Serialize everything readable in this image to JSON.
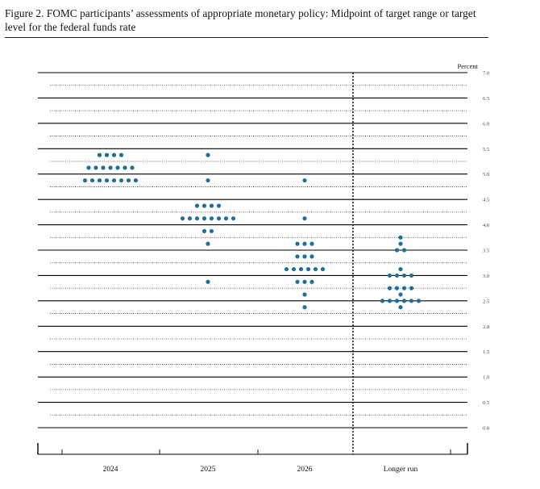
{
  "title": "Figure 2.  FOMC participants’ assessments of appropriate monetary policy: Midpoint of target range or target level for the federal funds rate",
  "chart_data": {
    "type": "scatter",
    "ylabel": "Percent",
    "ylim": [
      0,
      7
    ],
    "yticks": [
      "0.0",
      "0.5",
      "1.0",
      "1.5",
      "2.0",
      "2.5",
      "3.0",
      "3.5",
      "4.0",
      "4.5",
      "5.0",
      "5.5",
      "6.0",
      "6.5",
      "7.0"
    ],
    "categories": [
      "2024",
      "2025",
      "2026",
      "Longer run"
    ],
    "dot_color": "#1f6f99",
    "dots": [
      {
        "category": "2024",
        "rates": [
          {
            "y": 5.375,
            "count": 4
          },
          {
            "y": 5.125,
            "count": 7
          },
          {
            "y": 4.875,
            "count": 8
          }
        ]
      },
      {
        "category": "2025",
        "rates": [
          {
            "y": 5.375,
            "count": 1
          },
          {
            "y": 4.875,
            "count": 1
          },
          {
            "y": 4.375,
            "count": 4
          },
          {
            "y": 4.125,
            "count": 8
          },
          {
            "y": 3.875,
            "count": 2
          },
          {
            "y": 3.625,
            "count": 1
          },
          {
            "y": 2.875,
            "count": 1
          }
        ]
      },
      {
        "category": "2026",
        "rates": [
          {
            "y": 4.875,
            "count": 1
          },
          {
            "y": 4.125,
            "count": 1
          },
          {
            "y": 3.625,
            "count": 3
          },
          {
            "y": 3.375,
            "count": 3
          },
          {
            "y": 3.125,
            "count": 6
          },
          {
            "y": 2.875,
            "count": 3
          },
          {
            "y": 2.625,
            "count": 1
          },
          {
            "y": 2.375,
            "count": 1
          }
        ]
      },
      {
        "category": "Longer run",
        "rates": [
          {
            "y": 3.75,
            "count": 1
          },
          {
            "y": 3.625,
            "count": 1
          },
          {
            "y": 3.5,
            "count": 2
          },
          {
            "y": 3.125,
            "count": 1
          },
          {
            "y": 3.0,
            "count": 4
          },
          {
            "y": 2.75,
            "count": 4
          },
          {
            "y": 2.625,
            "count": 1
          },
          {
            "y": 2.5,
            "count": 6
          },
          {
            "y": 2.375,
            "count": 1
          }
        ]
      }
    ]
  }
}
